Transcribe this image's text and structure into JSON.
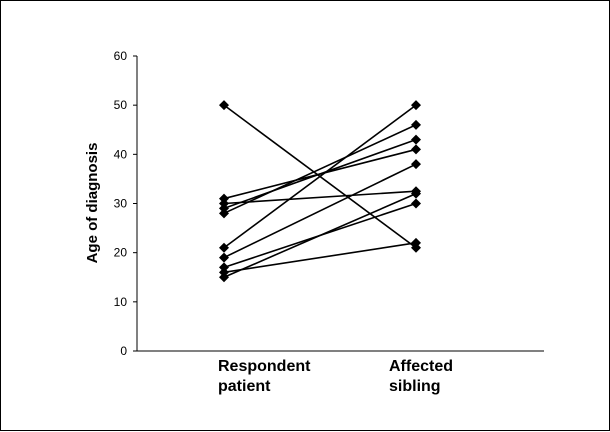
{
  "chart_data": {
    "type": "line",
    "title": "",
    "xlabel": "",
    "ylabel": "Age of diagnosis",
    "categories": [
      [
        "Respondent",
        "patient"
      ],
      [
        "Affected",
        "sibling"
      ]
    ],
    "ylim": [
      0,
      60
    ],
    "yticks": [
      0,
      10,
      20,
      30,
      40,
      50,
      60
    ],
    "grid": false,
    "legend": "none",
    "marker": "diamond",
    "line_color": "#000000",
    "series": [
      {
        "values": [
          50,
          21
        ]
      },
      {
        "values": [
          31,
          41
        ]
      },
      {
        "values": [
          30,
          32.5
        ]
      },
      {
        "values": [
          29,
          43
        ]
      },
      {
        "values": [
          28,
          46
        ]
      },
      {
        "values": [
          21,
          50
        ]
      },
      {
        "values": [
          19,
          38
        ]
      },
      {
        "values": [
          17,
          30
        ]
      },
      {
        "values": [
          16,
          22
        ]
      },
      {
        "values": [
          15,
          32
        ]
      }
    ]
  }
}
